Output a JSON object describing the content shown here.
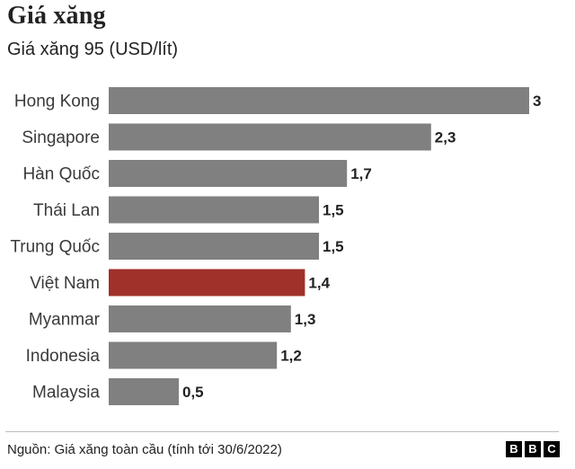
{
  "chart_data": {
    "type": "bar",
    "orientation": "horizontal",
    "title": "Giá xăng",
    "subtitle": "Giá xăng 95 (USD/lít)",
    "categories": [
      "Hong Kong",
      "Singapore",
      "Hàn Quốc",
      "Thái Lan",
      "Trung Quốc",
      "Việt Nam",
      "Myanmar",
      "Indonesia",
      "Malaysia"
    ],
    "values": [
      3,
      2.3,
      1.7,
      1.5,
      1.5,
      1.4,
      1.3,
      1.2,
      0.5
    ],
    "value_labels": [
      "3",
      "2,3",
      "1,7",
      "1,5",
      "1,5",
      "1,4",
      "1,3",
      "1,2",
      "0,5"
    ],
    "highlight": "Việt Nam",
    "colors": {
      "bar": "#808080",
      "highlight": "#a0302a"
    },
    "xlim": [
      0,
      3
    ],
    "grid": false,
    "legend": "none"
  },
  "footer": {
    "source": "Nguồn: Giá xăng toàn cầu (tính tới 30/6/2022)",
    "logo_letters": [
      "B",
      "B",
      "C"
    ]
  }
}
